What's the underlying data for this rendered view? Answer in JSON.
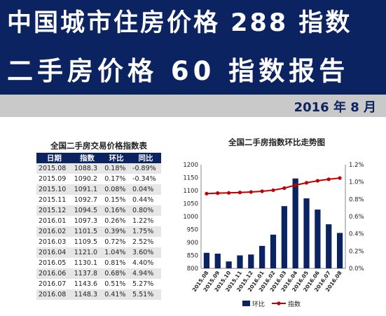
{
  "banner": {
    "line1": "中国城市住房价格 288 指数",
    "line2": "二手房价格 60 指数报告",
    "date": "2016 年 8 月"
  },
  "table": {
    "title": "全国二手房交易价格指数表",
    "headers": [
      "日期",
      "指数",
      "环比",
      "同比"
    ],
    "rows": [
      [
        "2015.08",
        "1088.3",
        "0.18%",
        "-0.89%"
      ],
      [
        "2015.09",
        "1090.2",
        "0.17%",
        "-0.34%"
      ],
      [
        "2015.10",
        "1091.1",
        "0.08%",
        "0.04%"
      ],
      [
        "2015.11",
        "1092.7",
        "0.15%",
        "0.44%"
      ],
      [
        "2015.12",
        "1094.5",
        "0.16%",
        "0.80%"
      ],
      [
        "2016.01",
        "1097.3",
        "0.26%",
        "1.22%"
      ],
      [
        "2016.02",
        "1101.5",
        "0.39%",
        "1.75%"
      ],
      [
        "2016.03",
        "1109.5",
        "0.72%",
        "2.52%"
      ],
      [
        "2016.04",
        "1121.0",
        "1.04%",
        "3.60%"
      ],
      [
        "2016.05",
        "1130.1",
        "0.81%",
        "4.40%"
      ],
      [
        "2016.06",
        "1137.8",
        "0.68%",
        "4.94%"
      ],
      [
        "2016.07",
        "1143.6",
        "0.51%",
        "5.27%"
      ],
      [
        "2016.08",
        "1148.3",
        "0.41%",
        "5.51%"
      ]
    ]
  },
  "chart_data": {
    "type": "bar",
    "title": "全国二手房指数环比走势图",
    "categories": [
      "2015.08",
      "2015.09",
      "2015.10",
      "2015.11",
      "2015.12",
      "2016.01",
      "2016.02",
      "2016.03",
      "2016.04",
      "2016.05",
      "2016.06",
      "2016.07",
      "2016.08"
    ],
    "series": [
      {
        "name": "环比",
        "type": "bar",
        "axis": "right",
        "color": "#0b2361",
        "values": [
          0.18,
          0.17,
          0.08,
          0.15,
          0.16,
          0.26,
          0.39,
          0.72,
          1.04,
          0.81,
          0.68,
          0.51,
          0.41
        ]
      },
      {
        "name": "指数",
        "type": "line",
        "axis": "left",
        "color": "#c00000",
        "values": [
          1088.3,
          1090.2,
          1091.1,
          1092.7,
          1094.5,
          1097.3,
          1101.5,
          1109.5,
          1121.0,
          1130.1,
          1137.8,
          1143.6,
          1148.3
        ]
      }
    ],
    "y_left": {
      "min": 800,
      "max": 1200,
      "ticks": [
        "800",
        "850",
        "900",
        "950",
        "1000",
        "1050",
        "1100",
        "1150",
        "1200"
      ]
    },
    "y_right": {
      "min": 0,
      "max": 1.2,
      "ticks": [
        "0.0%",
        "0.2%",
        "0.4%",
        "0.6%",
        "0.8%",
        "1.0%",
        "1.2%"
      ]
    },
    "grid": false,
    "legend": "bottom"
  }
}
